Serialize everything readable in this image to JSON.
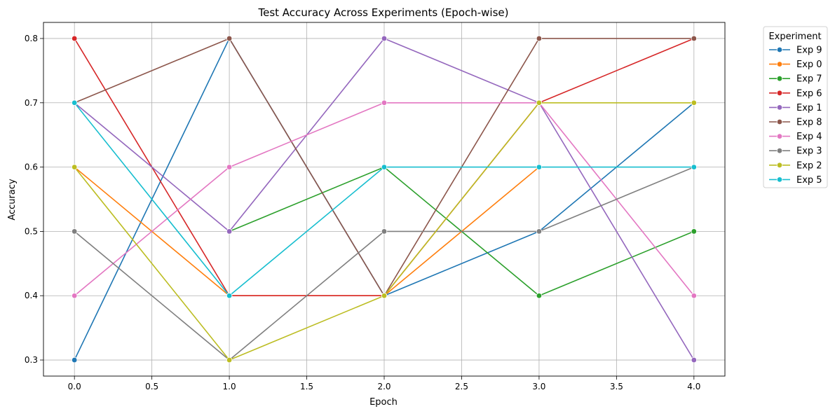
{
  "chart_data": {
    "type": "line",
    "title": "Test Accuracy Across Experiments (Epoch-wise)",
    "xlabel": "Epoch",
    "ylabel": "Accuracy",
    "xlim": [
      -0.2,
      4.2
    ],
    "ylim": [
      0.275,
      0.825
    ],
    "x": [
      0,
      1,
      2,
      3,
      4
    ],
    "xticks": [
      0.0,
      0.5,
      1.0,
      1.5,
      2.0,
      2.5,
      3.0,
      3.5,
      4.0
    ],
    "xtick_labels": [
      "0.0",
      "0.5",
      "1.0",
      "1.5",
      "2.0",
      "2.5",
      "3.0",
      "3.5",
      "4.0"
    ],
    "yticks": [
      0.3,
      0.4,
      0.5,
      0.6,
      0.7,
      0.8
    ],
    "ytick_labels": [
      "0.3",
      "0.4",
      "0.5",
      "0.6",
      "0.7",
      "0.8"
    ],
    "grid": true,
    "legend": {
      "title": "Experiment",
      "placement": "outside-right-top"
    },
    "marker": "circle",
    "series": [
      {
        "name": "Exp 9",
        "color": "#1f77b4",
        "values": [
          0.3,
          0.8,
          0.4,
          0.5,
          0.7
        ]
      },
      {
        "name": "Exp 0",
        "color": "#ff7f0e",
        "values": [
          0.6,
          0.4,
          0.4,
          0.6,
          null
        ]
      },
      {
        "name": "Exp 7",
        "color": "#2ca02c",
        "values": [
          null,
          0.5,
          0.6,
          0.4,
          0.5
        ]
      },
      {
        "name": "Exp 6",
        "color": "#d62728",
        "values": [
          0.8,
          0.4,
          0.4,
          0.7,
          0.8
        ]
      },
      {
        "name": "Exp 1",
        "color": "#9467bd",
        "values": [
          0.7,
          0.5,
          0.8,
          0.7,
          0.3
        ]
      },
      {
        "name": "Exp 8",
        "color": "#8c564b",
        "values": [
          0.7,
          0.8,
          0.4,
          0.8,
          0.8
        ]
      },
      {
        "name": "Exp 4",
        "color": "#e377c2",
        "values": [
          0.4,
          0.6,
          0.7,
          0.7,
          0.4
        ]
      },
      {
        "name": "Exp 3",
        "color": "#7f7f7f",
        "values": [
          0.5,
          0.3,
          0.5,
          0.5,
          0.6
        ]
      },
      {
        "name": "Exp 2",
        "color": "#bcbd22",
        "values": [
          0.6,
          0.3,
          0.4,
          0.7,
          0.7
        ]
      },
      {
        "name": "Exp 5",
        "color": "#17becf",
        "values": [
          0.7,
          0.4,
          0.6,
          0.6,
          0.6
        ]
      }
    ]
  }
}
